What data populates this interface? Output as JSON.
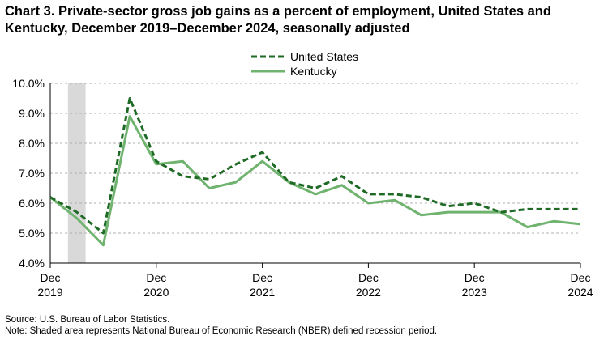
{
  "title": "Chart 3. Private-sector gross job gains as a percent of employment, United States and Kentucky, December 2019–December 2024, seasonally adjusted",
  "source": "Source: U.S. Bureau of Labor Statistics.",
  "note": "Note: Shaded area represents National Bureau of Economic Research (NBER) defined recession period.",
  "chart_data": {
    "type": "line",
    "x": [
      "2019-12",
      "2020-03",
      "2020-06",
      "2020-09",
      "2020-12",
      "2021-03",
      "2021-06",
      "2021-09",
      "2021-12",
      "2022-03",
      "2022-06",
      "2022-09",
      "2022-12",
      "2023-03",
      "2023-06",
      "2023-09",
      "2023-12",
      "2024-03",
      "2024-06",
      "2024-09",
      "2024-12"
    ],
    "series": [
      {
        "name": "United States",
        "style": "dashed",
        "color": "#1f6b26",
        "values": [
          6.2,
          5.7,
          5.0,
          9.5,
          7.4,
          6.9,
          6.8,
          7.3,
          7.7,
          6.7,
          6.5,
          6.9,
          6.3,
          6.3,
          6.2,
          5.9,
          6.0,
          5.7,
          5.8,
          5.8,
          5.8
        ]
      },
      {
        "name": "Kentucky",
        "style": "solid",
        "color": "#6fb36f",
        "values": [
          6.2,
          5.5,
          4.6,
          8.9,
          7.3,
          7.4,
          6.5,
          6.7,
          7.4,
          6.7,
          6.3,
          6.6,
          6.0,
          6.1,
          5.6,
          5.7,
          5.7,
          5.7,
          5.2,
          5.4,
          5.3
        ]
      }
    ],
    "ylim": [
      4.0,
      10.0
    ],
    "yticks": [
      "4.0%",
      "5.0%",
      "6.0%",
      "7.0%",
      "8.0%",
      "9.0%",
      "10.0%"
    ],
    "xticks": [
      {
        "x": "2019-12",
        "month": "Dec",
        "year": "2019"
      },
      {
        "x": "2020-12",
        "month": "Dec",
        "year": "2020"
      },
      {
        "x": "2021-12",
        "month": "Dec",
        "year": "2021"
      },
      {
        "x": "2022-12",
        "month": "Dec",
        "year": "2022"
      },
      {
        "x": "2023-12",
        "month": "Dec",
        "year": "2023"
      },
      {
        "x": "2024-12",
        "month": "Dec",
        "year": "2024"
      }
    ],
    "recession": {
      "start": "2020-02",
      "end": "2020-04",
      "color": "#d9d9d9"
    },
    "grid": true,
    "legend_position": "top-center"
  }
}
